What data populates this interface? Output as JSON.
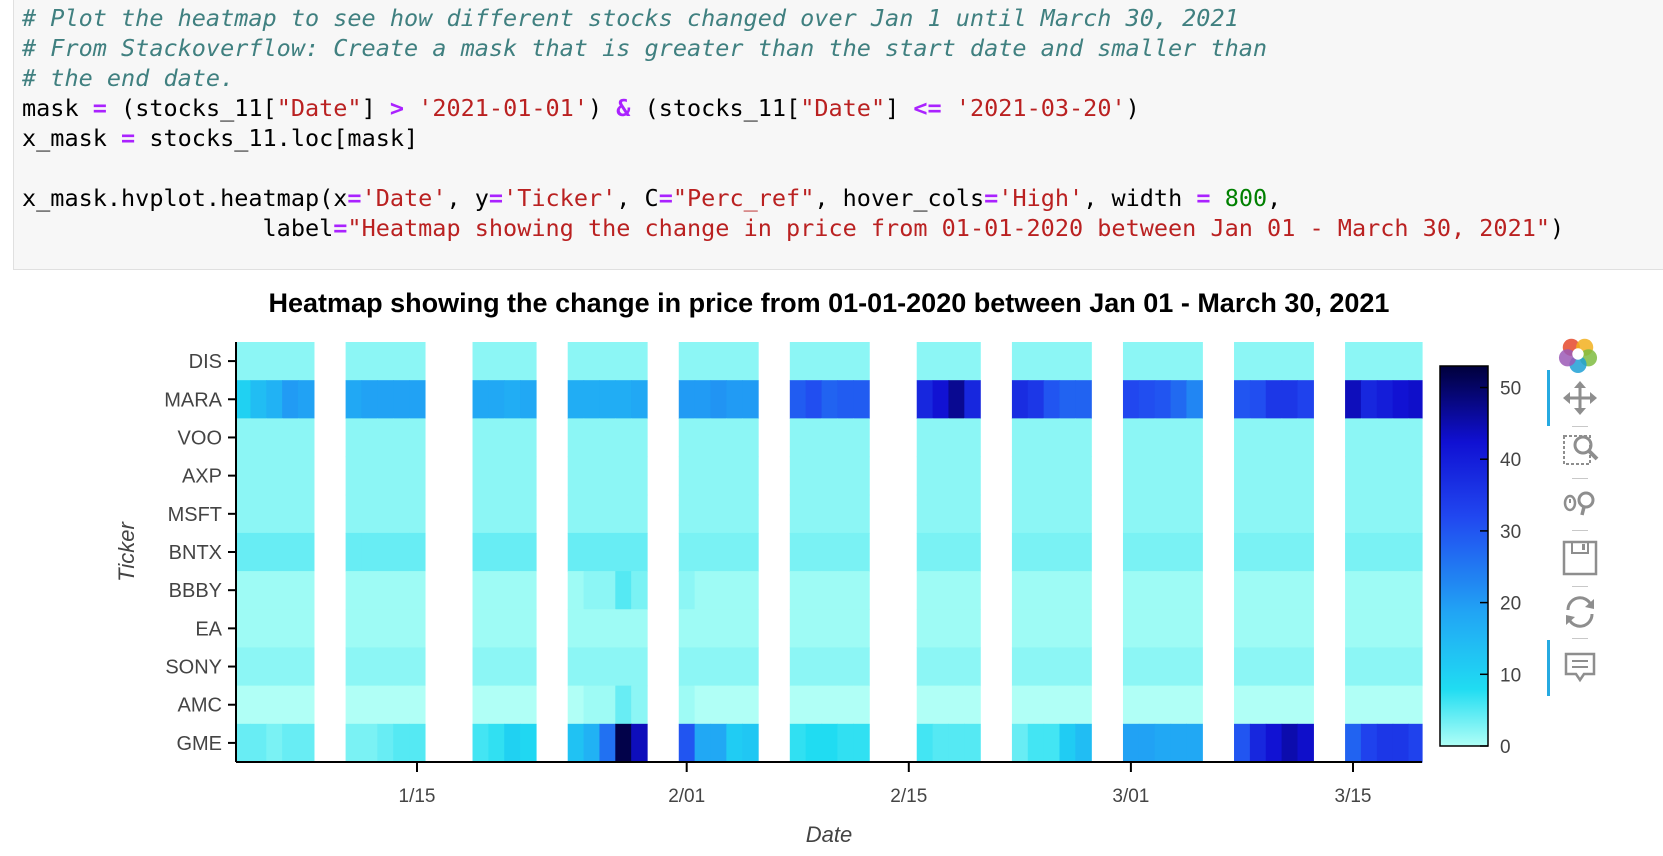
{
  "code": {
    "comment1": "# Plot the heatmap to see how different stocks changed over Jan 1 until March 30, 2021",
    "comment2": "# From Stackoverflow: Create a mask that is greater than the start date and smaller than",
    "comment3": "# the end date.",
    "l4_a": "mask ",
    "l4_eq": "=",
    "l4_b": " (stocks_11[",
    "l4_s1": "\"Date\"",
    "l4_c": "] ",
    "l4_gt": ">",
    "l4_d": " ",
    "l4_s2": "'2021-01-01'",
    "l4_e": ") ",
    "l4_amp": "&",
    "l4_f": " (stocks_11[",
    "l4_s3": "\"Date\"",
    "l4_g": "] ",
    "l4_le": "<=",
    "l4_h": " ",
    "l4_s4": "'2021-03-20'",
    "l4_i": ")",
    "l5_a": "x_mask ",
    "l5_eq": "=",
    "l5_b": " stocks_11.loc[mask]",
    "l7_a": "x_mask.hvplot.heatmap(x",
    "l7_eq1": "=",
    "l7_s1": "'Date'",
    "l7_b": ", y",
    "l7_eq2": "=",
    "l7_s2": "'Ticker'",
    "l7_c": ", C",
    "l7_eq3": "=",
    "l7_s3": "\"Perc_ref\"",
    "l7_d": ", hover_cols",
    "l7_eq4": "=",
    "l7_s4": "'High'",
    "l7_e": ", width ",
    "l7_eq5": "=",
    "l7_f": " ",
    "l7_num": "800",
    "l7_g": ",",
    "l8_a": "                 label",
    "l8_eq": "=",
    "l8_s": "\"Heatmap showing the change in price from 01-01-2020 between Jan 01 - March 30, 2021\"",
    "l8_b": ")"
  },
  "chart_data": {
    "type": "heatmap",
    "title": "Heatmap showing the change in price from 01-01-2020 between Jan 01 - March 30, 2021",
    "xlabel": "Date",
    "ylabel": "Ticker",
    "x_ticks": [
      "1/15",
      "2/01",
      "2/15",
      "3/01",
      "3/15"
    ],
    "x_tick_dates": [
      "2021-01-15",
      "2021-02-01",
      "2021-02-15",
      "2021-03-01",
      "2021-03-15"
    ],
    "y_categories": [
      "DIS",
      "MARA",
      "VOO",
      "AXP",
      "MSFT",
      "BNTX",
      "BBBY",
      "EA",
      "SONY",
      "AMC",
      "GME"
    ],
    "x": [
      "2021-01-04",
      "2021-01-05",
      "2021-01-06",
      "2021-01-07",
      "2021-01-08",
      "2021-01-11",
      "2021-01-12",
      "2021-01-13",
      "2021-01-14",
      "2021-01-15",
      "2021-01-19",
      "2021-01-20",
      "2021-01-21",
      "2021-01-22",
      "2021-01-25",
      "2021-01-26",
      "2021-01-27",
      "2021-01-28",
      "2021-01-29",
      "2021-02-01",
      "2021-02-02",
      "2021-02-03",
      "2021-02-04",
      "2021-02-05",
      "2021-02-08",
      "2021-02-09",
      "2021-02-10",
      "2021-02-11",
      "2021-02-12",
      "2021-02-16",
      "2021-02-17",
      "2021-02-18",
      "2021-02-19",
      "2021-02-22",
      "2021-02-23",
      "2021-02-24",
      "2021-02-25",
      "2021-02-26",
      "2021-03-01",
      "2021-03-02",
      "2021-03-03",
      "2021-03-04",
      "2021-03-05",
      "2021-03-08",
      "2021-03-09",
      "2021-03-10",
      "2021-03-11",
      "2021-03-12",
      "2021-03-15",
      "2021-03-16",
      "2021-03-17",
      "2021-03-18",
      "2021-03-19"
    ],
    "series": [
      {
        "name": "DIS",
        "values": [
          2,
          2,
          2,
          2,
          2,
          2,
          2,
          2,
          2,
          2,
          2,
          2,
          2,
          2,
          2,
          2,
          2,
          2,
          2,
          2,
          2,
          2,
          2,
          2,
          2,
          2,
          2,
          2,
          2,
          2,
          2,
          2,
          2,
          2,
          2,
          2,
          2,
          2,
          2,
          2,
          2,
          2,
          2,
          2,
          2,
          2,
          2,
          2,
          2,
          2,
          2,
          2,
          2
        ]
      },
      {
        "name": "MARA",
        "values": [
          10,
          14,
          16,
          20,
          19,
          18,
          19,
          19,
          19,
          19,
          18,
          18,
          17,
          18,
          17,
          17,
          17,
          17,
          18,
          20,
          20,
          21,
          20,
          20,
          29,
          31,
          28,
          29,
          29,
          38,
          42,
          47,
          38,
          37,
          35,
          30,
          28,
          28,
          32,
          31,
          30,
          27,
          23,
          30,
          31,
          35,
          35,
          33,
          44,
          38,
          40,
          42,
          43
        ]
      },
      {
        "name": "VOO",
        "values": [
          2,
          2,
          2,
          2,
          2,
          2,
          2,
          2,
          2,
          2,
          2,
          2,
          2,
          2,
          2,
          2,
          2,
          2,
          2,
          2,
          2,
          2,
          2,
          2,
          2,
          2,
          2,
          2,
          2,
          2,
          2,
          2,
          2,
          2,
          2,
          2,
          2,
          2,
          2,
          2,
          2,
          2,
          2,
          2,
          2,
          2,
          2,
          2,
          2,
          2,
          2,
          2,
          2
        ]
      },
      {
        "name": "AXP",
        "values": [
          2,
          2,
          2,
          2,
          2,
          2,
          2,
          2,
          2,
          2,
          2,
          2,
          2,
          2,
          2,
          2,
          2,
          2,
          2,
          2,
          2,
          2,
          2,
          2,
          2,
          2,
          2,
          2,
          2,
          2,
          2,
          2,
          2,
          2,
          2,
          2,
          2,
          2,
          2,
          2,
          2,
          2,
          2,
          2,
          2,
          2,
          2,
          2,
          2,
          2,
          2,
          2,
          2
        ]
      },
      {
        "name": "MSFT",
        "values": [
          2,
          2,
          2,
          2,
          2,
          2,
          2,
          2,
          2,
          2,
          2,
          2,
          2,
          2,
          2,
          2,
          2,
          2,
          2,
          2,
          2,
          2,
          2,
          2,
          2,
          2,
          2,
          2,
          2,
          2,
          2,
          2,
          2,
          2,
          2,
          2,
          2,
          2,
          2,
          2,
          2,
          2,
          2,
          2,
          2,
          2,
          2,
          2,
          2,
          2,
          2,
          2,
          2
        ]
      },
      {
        "name": "BNTX",
        "values": [
          4,
          4,
          4,
          4,
          4,
          4,
          4,
          4,
          4,
          4,
          4,
          4,
          4,
          4,
          4,
          4,
          4,
          4,
          4,
          3,
          3,
          3,
          3,
          3,
          3,
          3,
          3,
          3,
          3,
          3,
          3,
          3,
          3,
          3,
          3,
          3,
          3,
          3,
          3,
          3,
          3,
          3,
          3,
          3,
          3,
          3,
          3,
          3,
          3,
          3,
          3,
          3,
          3
        ]
      },
      {
        "name": "BBBY",
        "values": [
          1,
          1,
          1,
          1,
          1,
          1,
          1,
          1,
          1,
          1,
          1,
          1,
          1,
          1,
          1,
          2,
          2,
          5,
          3,
          2,
          1,
          1,
          1,
          1,
          1,
          1,
          1,
          1,
          1,
          1,
          1,
          1,
          1,
          1,
          1,
          1,
          1,
          1,
          1,
          1,
          1,
          1,
          1,
          1,
          1,
          1,
          1,
          1,
          1,
          1,
          1,
          1,
          1
        ]
      },
      {
        "name": "EA",
        "values": [
          1,
          1,
          1,
          1,
          1,
          1,
          1,
          1,
          1,
          1,
          1,
          1,
          1,
          1,
          1,
          1,
          1,
          1,
          1,
          1,
          1,
          1,
          1,
          1,
          1,
          1,
          1,
          1,
          1,
          1,
          1,
          1,
          1,
          1,
          1,
          1,
          1,
          1,
          1,
          1,
          1,
          1,
          1,
          1,
          1,
          1,
          1,
          1,
          1,
          1,
          1,
          1,
          1
        ]
      },
      {
        "name": "SONY",
        "values": [
          2,
          2,
          2,
          2,
          2,
          2,
          2,
          2,
          2,
          2,
          2,
          2,
          2,
          2,
          2,
          2,
          2,
          2,
          2,
          2,
          2,
          2,
          2,
          2,
          2,
          2,
          2,
          2,
          2,
          2,
          2,
          2,
          2,
          2,
          2,
          2,
          2,
          2,
          2,
          2,
          2,
          2,
          2,
          2,
          2,
          2,
          2,
          2,
          2,
          2,
          2,
          2,
          2
        ]
      },
      {
        "name": "AMC",
        "values": [
          0,
          0,
          0,
          0,
          0,
          0,
          0,
          0,
          0,
          0,
          0,
          0,
          0,
          0,
          0,
          1,
          1,
          4,
          2,
          1,
          0,
          0,
          0,
          0,
          0,
          0,
          0,
          0,
          0,
          0,
          0,
          0,
          0,
          0,
          0,
          0,
          0,
          0,
          0,
          0,
          0,
          0,
          0,
          0,
          0,
          0,
          0,
          0,
          0,
          0,
          0,
          0,
          0
        ]
      },
      {
        "name": "GME",
        "values": [
          4,
          4,
          3,
          4,
          4,
          3,
          3,
          4,
          5,
          5,
          6,
          7,
          10,
          9,
          13,
          16,
          26,
          52,
          44,
          30,
          18,
          18,
          11,
          12,
          7,
          8,
          8,
          7,
          7,
          6,
          5,
          5,
          5,
          4,
          6,
          6,
          11,
          14,
          19,
          19,
          18,
          18,
          18,
          30,
          38,
          42,
          45,
          43,
          28,
          33,
          35,
          35,
          33
        ]
      }
    ],
    "colorbar": {
      "ticks": [
        0,
        10,
        20,
        30,
        40,
        50
      ],
      "range": [
        0,
        53
      ]
    }
  }
}
